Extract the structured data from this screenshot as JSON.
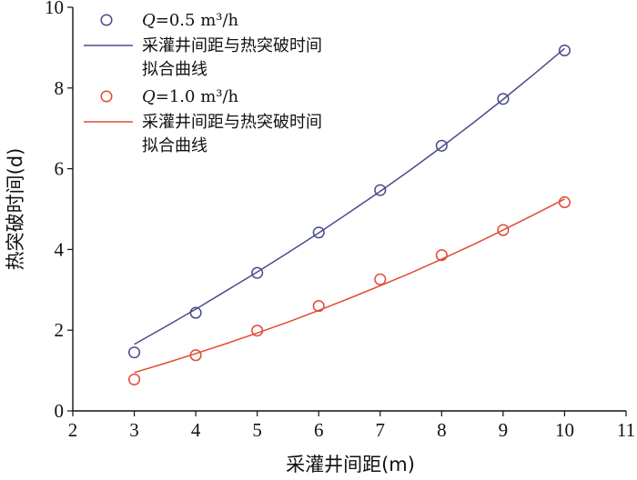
{
  "chart_data": {
    "type": "scatter",
    "xlabel": "采灌井间距(m)",
    "ylabel": "热突破时间(d)",
    "xlim": [
      2,
      11
    ],
    "ylim": [
      0,
      10
    ],
    "xticks": [
      "2",
      "3",
      "4",
      "5",
      "6",
      "7",
      "8",
      "9",
      "10",
      "11"
    ],
    "yticks": [
      "0",
      "2",
      "4",
      "6",
      "8",
      "10"
    ],
    "grid": false,
    "legend_position": "top-left",
    "series": [
      {
        "name": "Q=0.5 m³/h",
        "kind": "points",
        "color": "#4a4a8c",
        "x": [
          3,
          4,
          5,
          6,
          7,
          8,
          9,
          10
        ],
        "y": [
          1.45,
          2.43,
          3.42,
          4.42,
          5.47,
          6.57,
          7.73,
          8.93
        ]
      },
      {
        "name": "采灌井间距与热突破时间拟合曲线",
        "kind": "line",
        "color": "#4a4a8c",
        "x": [
          3,
          3.5,
          4,
          4.5,
          5,
          5.5,
          6,
          6.5,
          7,
          7.5,
          8,
          8.5,
          9,
          9.5,
          10
        ],
        "y": [
          1.65,
          2.08,
          2.52,
          2.98,
          3.44,
          3.92,
          4.41,
          4.92,
          5.44,
          5.98,
          6.54,
          7.12,
          7.72,
          8.34,
          8.98
        ]
      },
      {
        "name": "Q=1.0 m³/h",
        "kind": "points",
        "color": "#e04a35",
        "x": [
          3,
          4,
          5,
          6,
          7,
          8,
          9,
          10
        ],
        "y": [
          0.78,
          1.38,
          1.99,
          2.6,
          3.26,
          3.86,
          4.48,
          5.17
        ]
      },
      {
        "name": "采灌井间距与热突破时间拟合曲线",
        "kind": "line",
        "color": "#e04a35",
        "x": [
          3,
          3.5,
          4,
          4.5,
          5,
          5.5,
          6,
          6.5,
          7,
          7.5,
          8,
          8.5,
          9,
          9.5,
          10
        ],
        "y": [
          0.95,
          1.18,
          1.42,
          1.67,
          1.93,
          2.2,
          2.49,
          2.79,
          3.1,
          3.42,
          3.76,
          4.11,
          4.48,
          4.86,
          5.25
        ]
      }
    ],
    "legend": [
      {
        "label_italic": "Q",
        "label_rest": "=0.5 m³/h",
        "series": 0
      },
      {
        "label_lines": [
          "采灌井间距与热突破时间",
          "拟合曲线"
        ],
        "series": 1
      },
      {
        "label_italic": "Q",
        "label_rest": "=1.0 m³/h",
        "series": 2
      },
      {
        "label_lines": [
          "采灌井间距与热突破时间",
          "拟合曲线"
        ],
        "series": 3
      }
    ]
  }
}
